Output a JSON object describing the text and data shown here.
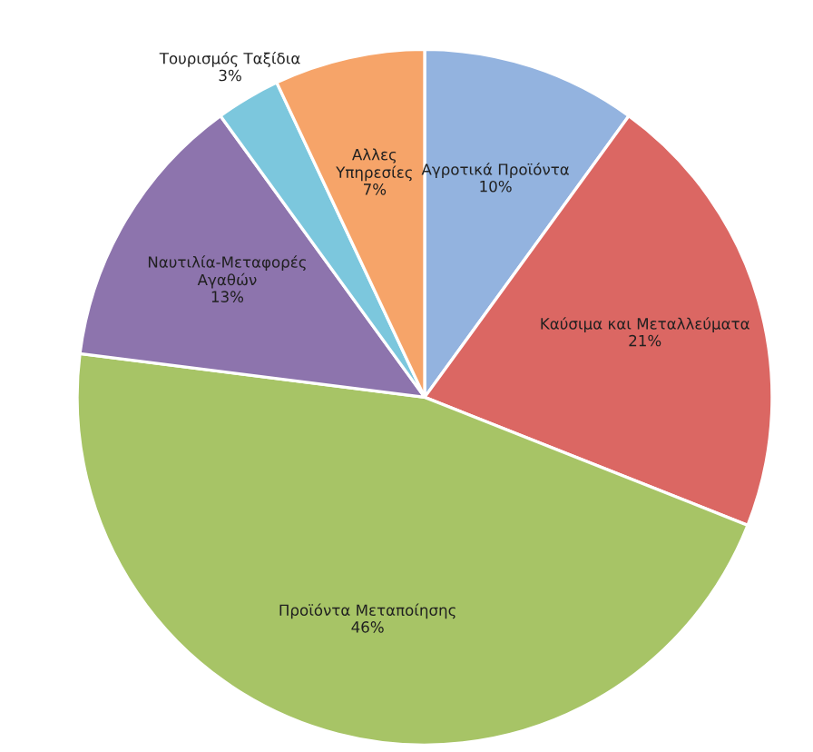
{
  "chart_data": {
    "type": "pie",
    "categories": [
      "Αγροτικά Προϊόντα",
      "Καύσιμα και Μεταλλεύματα",
      "Προϊόντα Μεταποίησης",
      "Ναυτιλία-Μεταφορές\nΑγαθών",
      "Τουρισμός Ταξίδια",
      "Αλλες\nΥπηρεσίες"
    ],
    "values": [
      10,
      21,
      46,
      13,
      3,
      7
    ],
    "colors": [
      "#93b3df",
      "#db6763",
      "#a7c466",
      "#8d74ad",
      "#7cc7dd",
      "#f6a469"
    ],
    "value_labels": [
      "10%",
      "21%",
      "46%",
      "13%",
      "3%",
      "7%"
    ]
  }
}
